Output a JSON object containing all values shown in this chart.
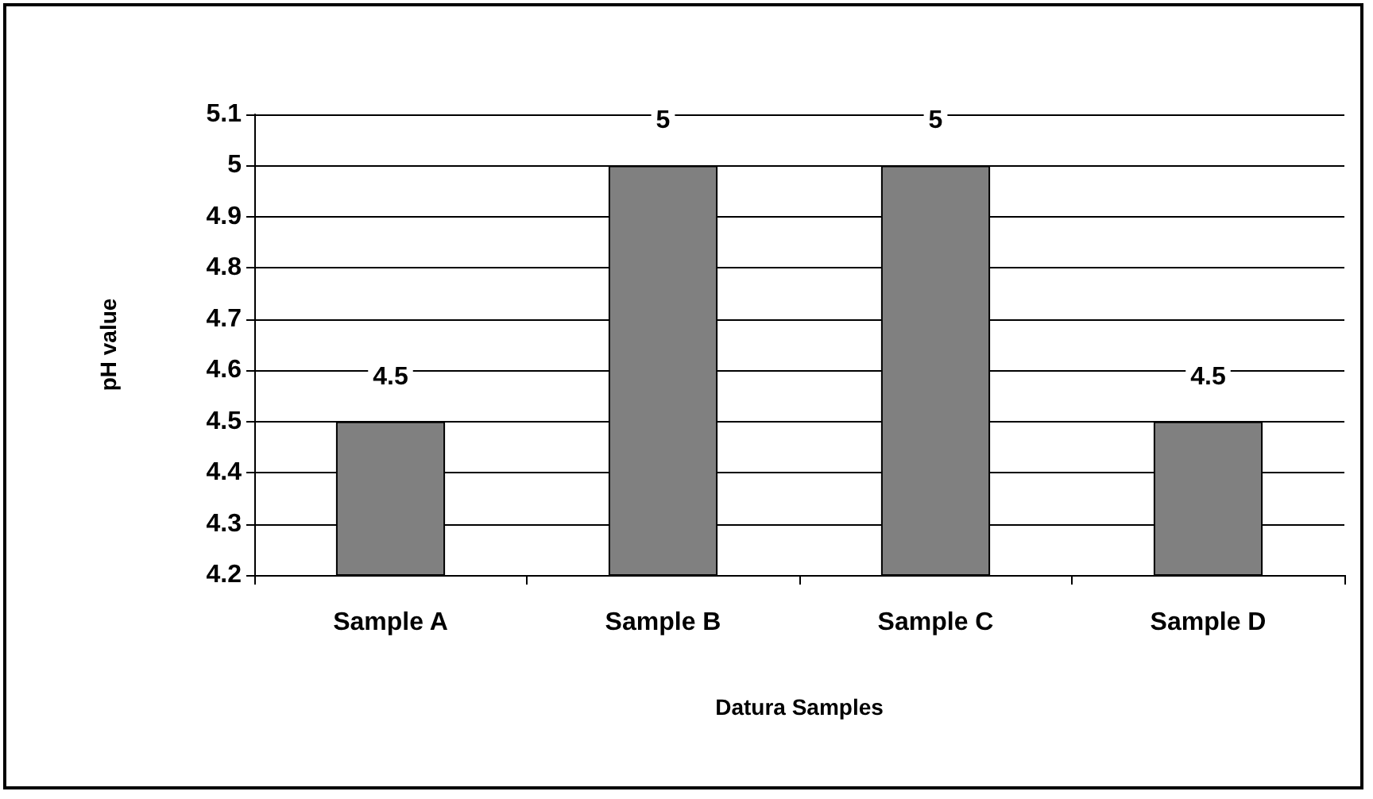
{
  "chart_data": {
    "type": "bar",
    "xlabel": "Datura Samples",
    "ylabel": "pH value",
    "categories": [
      "Sample A",
      "Sample B",
      "Sample C",
      "Sample D"
    ],
    "values": [
      4.5,
      5,
      5,
      4.5
    ],
    "color": "#808080",
    "ylim": [
      4.2,
      5.1
    ],
    "yticks": [
      4.2,
      4.3,
      4.4,
      4.5,
      4.6,
      4.7,
      4.8,
      4.9,
      5,
      5.1
    ],
    "grid": "y",
    "data_labels": true
  }
}
